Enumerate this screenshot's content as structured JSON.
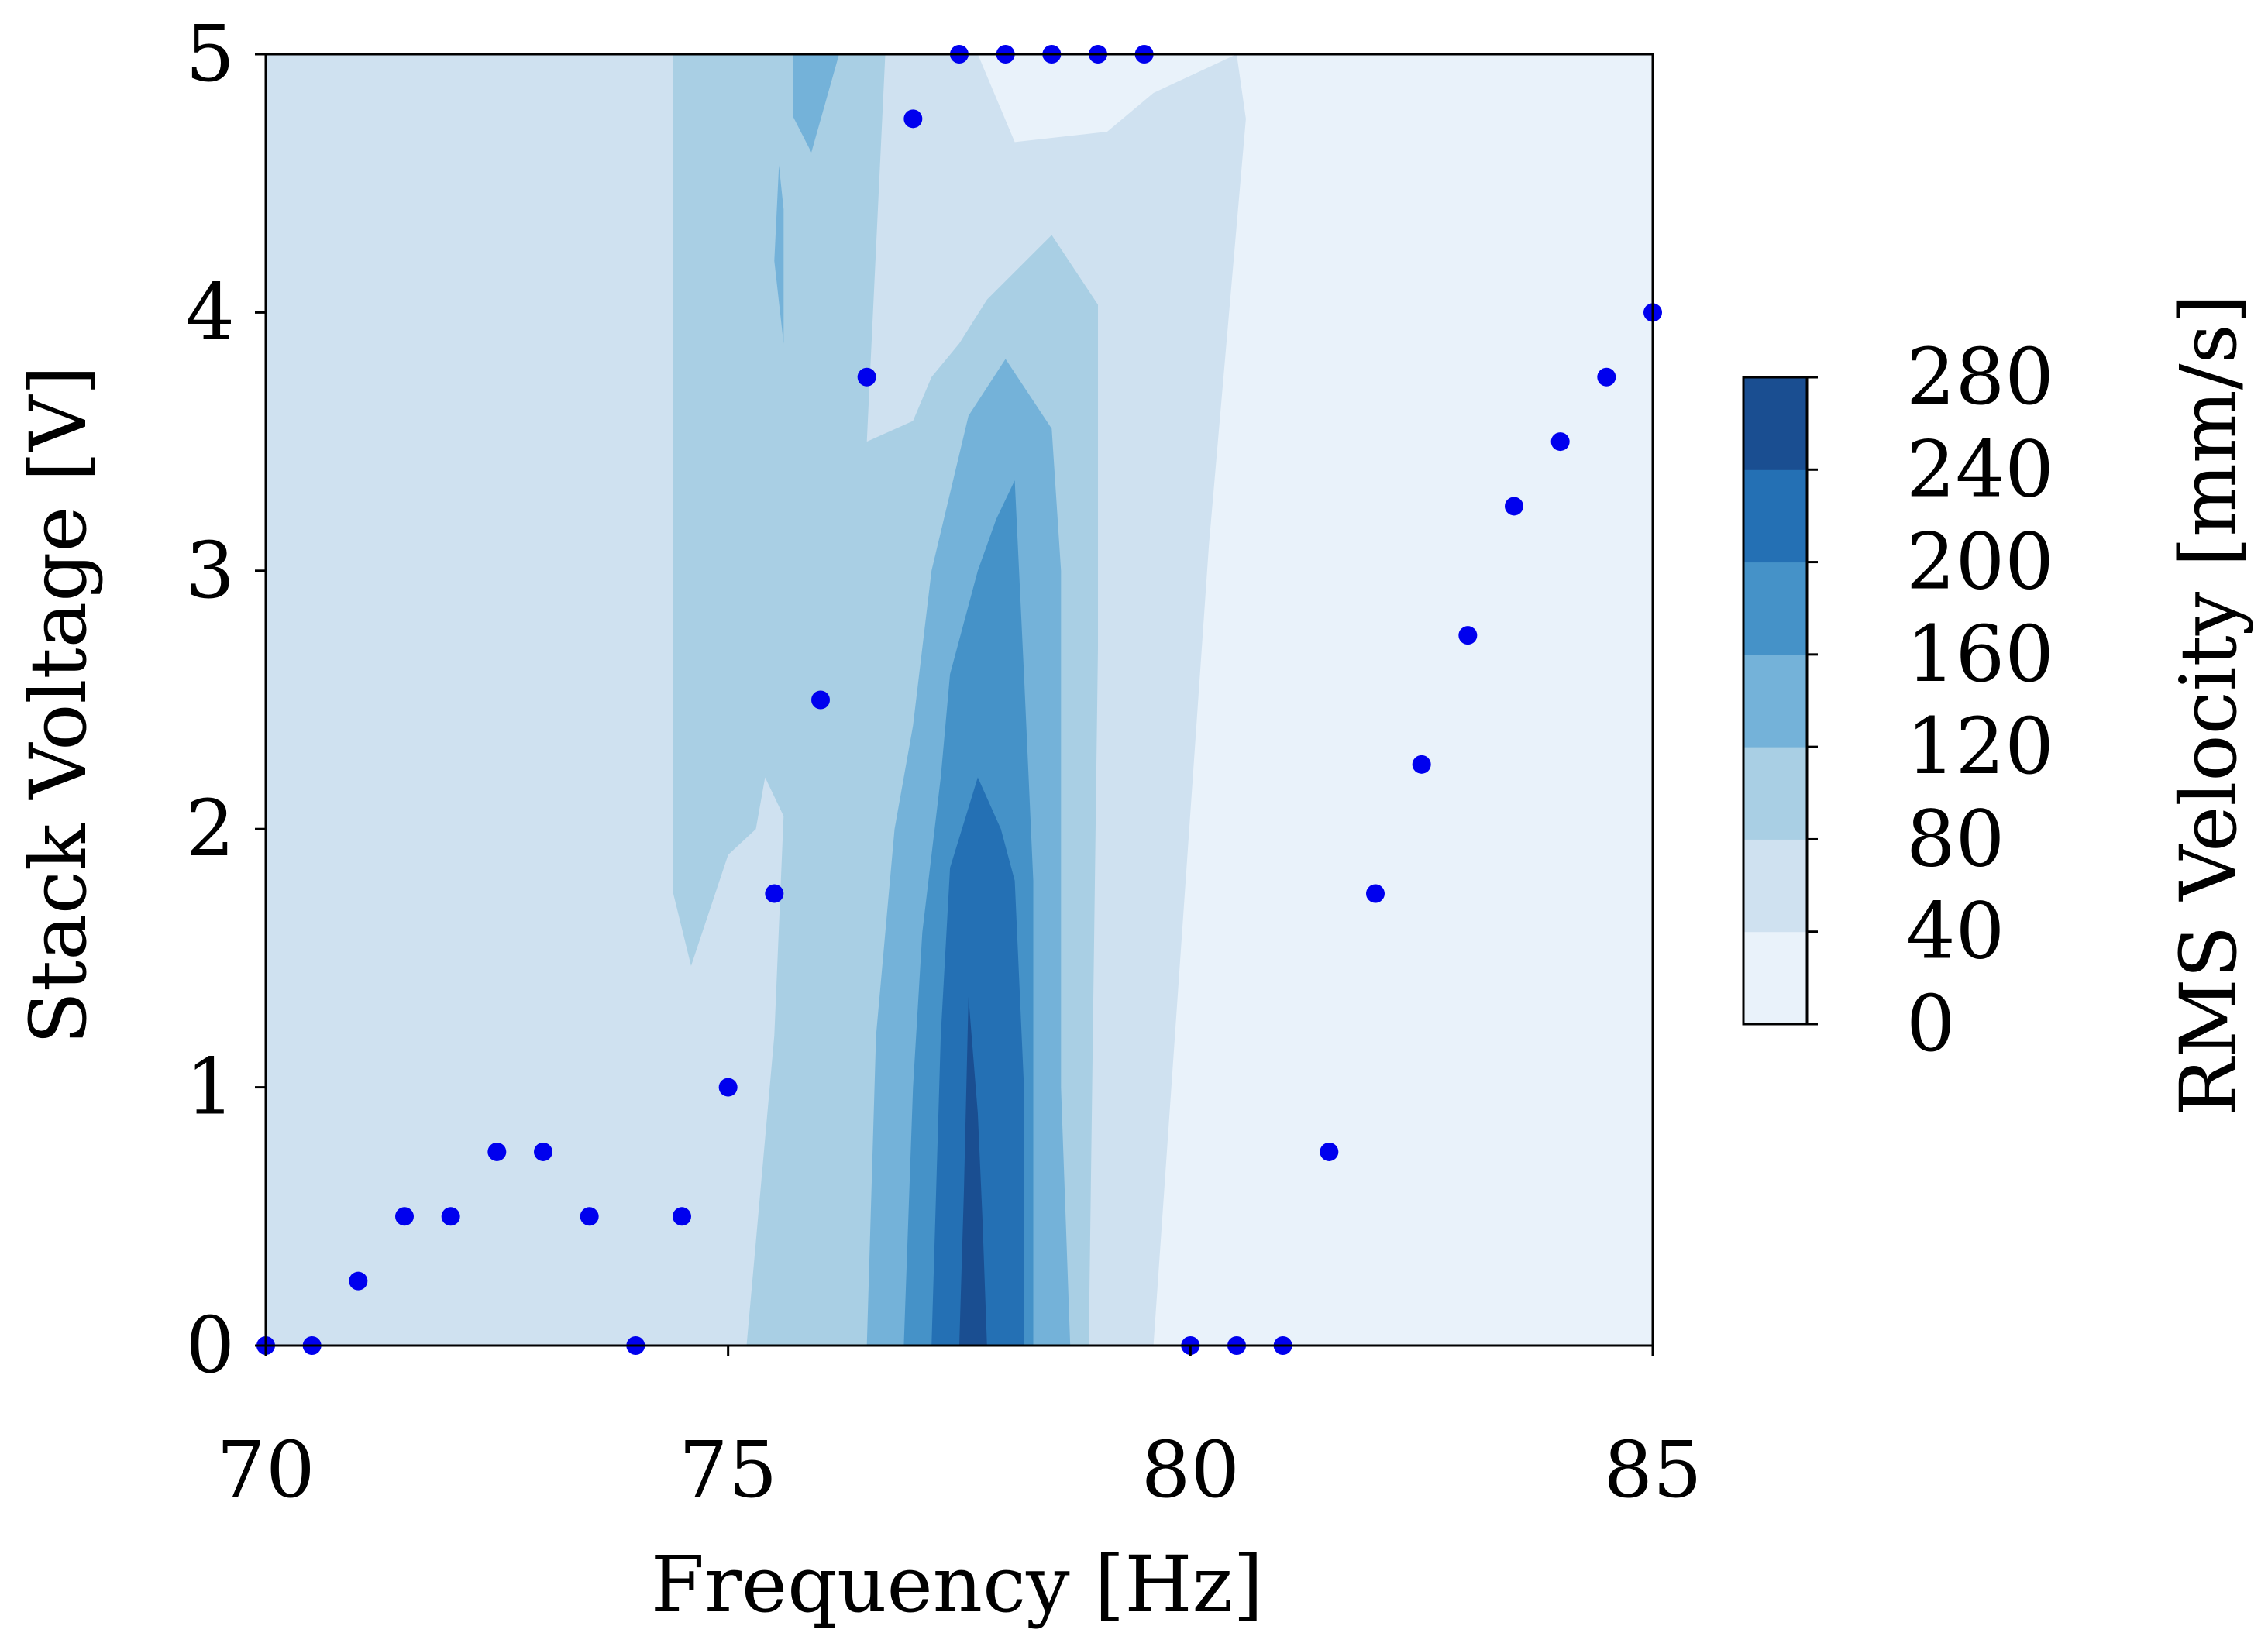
{
  "chart_data": {
    "type": "contour",
    "xlabel": "Frequency [Hz]",
    "ylabel": "Stack Voltage [V]",
    "xlim": [
      70,
      85
    ],
    "ylim": [
      0,
      5
    ],
    "xticks": [
      70,
      75,
      80,
      85
    ],
    "yticks": [
      0,
      1,
      2,
      3,
      4,
      5
    ],
    "xtick_labels": [
      "70",
      "75",
      "80",
      "85"
    ],
    "ytick_labels": [
      "0",
      "1",
      "2",
      "3",
      "4",
      "5"
    ],
    "grid": false,
    "colorbar": {
      "label": "RMS Velocity [mm/s]",
      "levels": [
        0,
        40,
        80,
        120,
        160,
        200,
        240,
        280
      ],
      "tick_labels": [
        "0",
        "40",
        "80",
        "120",
        "160",
        "200",
        "240",
        "280"
      ],
      "colors": [
        "#e9f2fa",
        "#cfe1f0",
        "#a9cfe4",
        "#74b2d9",
        "#4592c8",
        "#2470b4",
        "#1a4e91"
      ]
    },
    "contour_bands": [
      {
        "level": "40-80",
        "points": [
          [
            74.4,
            5
          ],
          [
            77.7,
            5
          ],
          [
            78.1,
            4.66
          ],
          [
            79.1,
            4.7
          ],
          [
            79.6,
            4.85
          ],
          [
            80.5,
            5
          ],
          [
            80.6,
            4.75
          ],
          [
            80.2,
            3.1
          ],
          [
            79.6,
            0
          ]
        ]
      },
      {
        "level": "80-120",
        "points": [
          [
            74.4,
            5
          ],
          [
            76.7,
            5
          ],
          [
            76.5,
            3.5
          ],
          [
            77.0,
            3.58
          ],
          [
            77.2,
            3.75
          ],
          [
            77.5,
            3.88
          ],
          [
            77.8,
            4.05
          ],
          [
            78.5,
            4.3
          ],
          [
            79.0,
            4.03
          ],
          [
            79.0,
            2.7
          ],
          [
            78.9,
            0
          ],
          [
            75.2,
            0
          ],
          [
            75.5,
            1.2
          ],
          [
            75.6,
            2.05
          ],
          [
            75.4,
            2.2
          ],
          [
            75.3,
            2.0
          ],
          [
            75.0,
            1.9
          ],
          [
            74.6,
            1.47
          ],
          [
            74.4,
            1.76
          ]
        ]
      },
      {
        "level": "120-160",
        "points": [
          [
            75.7,
            5
          ],
          [
            76.2,
            5
          ],
          [
            75.9,
            4.62
          ],
          [
            75.7,
            4.76
          ]
        ]
      },
      {
        "level": "120-160",
        "points": [
          [
            75.55,
            4.57
          ],
          [
            75.6,
            4.4
          ],
          [
            75.6,
            3.88
          ],
          [
            75.5,
            4.2
          ]
        ]
      },
      {
        "level": "120-160",
        "points": [
          [
            76.5,
            0
          ],
          [
            76.6,
            1.2
          ],
          [
            76.8,
            2.0
          ],
          [
            77.0,
            2.4
          ],
          [
            77.2,
            3.0
          ],
          [
            77.6,
            3.6
          ],
          [
            78.0,
            3.82
          ],
          [
            78.5,
            3.55
          ],
          [
            78.6,
            3.0
          ],
          [
            78.6,
            1.0
          ],
          [
            78.7,
            0
          ]
        ]
      },
      {
        "level": "160-200",
        "points": [
          [
            76.9,
            0
          ],
          [
            77.0,
            1.0
          ],
          [
            77.1,
            1.6
          ],
          [
            77.3,
            2.2
          ],
          [
            77.4,
            2.6
          ],
          [
            77.7,
            3.0
          ],
          [
            77.9,
            3.2
          ],
          [
            78.1,
            3.35
          ],
          [
            78.2,
            2.6
          ],
          [
            78.3,
            1.8
          ],
          [
            78.3,
            0
          ]
        ]
      },
      {
        "level": "200-240",
        "points": [
          [
            77.2,
            0
          ],
          [
            77.3,
            1.2
          ],
          [
            77.4,
            1.85
          ],
          [
            77.7,
            2.2
          ],
          [
            77.95,
            2.0
          ],
          [
            78.1,
            1.8
          ],
          [
            78.2,
            1.0
          ],
          [
            78.2,
            0
          ]
        ]
      },
      {
        "level": "240-280",
        "points": [
          [
            77.5,
            0
          ],
          [
            77.55,
            0.6
          ],
          [
            77.6,
            1.35
          ],
          [
            77.7,
            0.9
          ],
          [
            77.75,
            0.5
          ],
          [
            77.8,
            0
          ]
        ]
      }
    ],
    "scatter_points": {
      "color": "#0000ee",
      "x": [
        70,
        70.5,
        71,
        71.5,
        72,
        72.5,
        73,
        73.5,
        74,
        74.5,
        75,
        75.5,
        76,
        76.5,
        77,
        77.5,
        78,
        78.5,
        79,
        79.5,
        80,
        80.5,
        81,
        81.5,
        82,
        82.5,
        83,
        83.5,
        84,
        84.5,
        85
      ],
      "y": [
        0,
        0,
        0.25,
        0.5,
        0.5,
        0.75,
        0.75,
        0.5,
        0,
        0.5,
        1.0,
        1.75,
        2.5,
        3.75,
        4.75,
        5.0,
        5.0,
        5.0,
        5.0,
        5.0,
        0,
        0,
        0,
        0.75,
        1.75,
        2.25,
        2.75,
        3.25,
        3.5,
        3.75,
        4.0
      ]
    }
  }
}
